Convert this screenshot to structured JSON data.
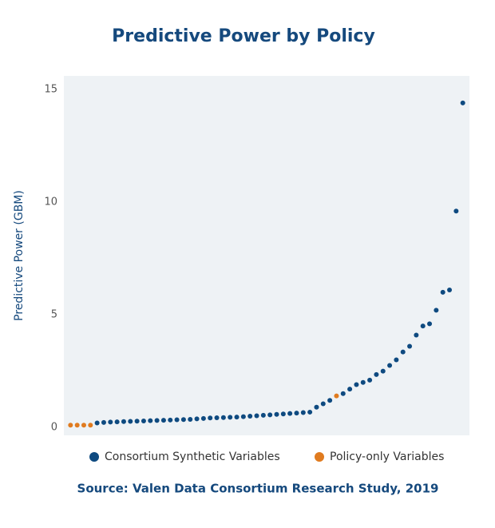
{
  "chart_data": {
    "type": "scatter",
    "title": "Predictive Power by Policy",
    "y_label": "Predictive Power (GBM)",
    "source": "Source: Valen Data Consortium Research Study, 2019",
    "xlim": [
      0,
      61
    ],
    "ylim": [
      -0.35,
      15.6
    ],
    "yticks": [
      0,
      5,
      10,
      15
    ],
    "grid": false,
    "series": [
      {
        "name": "Consortium Synthetic Variables",
        "color": "#0e4a80",
        "x": [
          5,
          6,
          7,
          8,
          9,
          10,
          11,
          12,
          13,
          14,
          15,
          16,
          17,
          18,
          19,
          20,
          21,
          22,
          23,
          24,
          25,
          26,
          27,
          28,
          29,
          30,
          31,
          32,
          33,
          34,
          35,
          36,
          37,
          38,
          39,
          40,
          42,
          43,
          44,
          45,
          46,
          47,
          48,
          49,
          50,
          51,
          52,
          53,
          54,
          55,
          56,
          57,
          58,
          59,
          60
        ],
        "values": [
          0.2,
          0.22,
          0.24,
          0.25,
          0.26,
          0.27,
          0.28,
          0.29,
          0.3,
          0.31,
          0.32,
          0.33,
          0.34,
          0.35,
          0.36,
          0.38,
          0.4,
          0.42,
          0.43,
          0.44,
          0.45,
          0.46,
          0.48,
          0.5,
          0.52,
          0.54,
          0.56,
          0.58,
          0.6,
          0.62,
          0.64,
          0.66,
          0.68,
          0.9,
          1.05,
          1.2,
          1.5,
          1.7,
          1.9,
          2.0,
          2.1,
          2.35,
          2.5,
          2.75,
          3.0,
          3.35,
          3.6,
          4.1,
          4.5,
          4.6,
          5.2,
          6.0,
          6.1,
          9.6,
          14.4
        ]
      },
      {
        "name": "Policy-only Variables",
        "color": "#e07b1f",
        "x": [
          1,
          2,
          3,
          4,
          41
        ],
        "values": [
          0.1,
          0.1,
          0.1,
          0.1,
          1.4
        ]
      }
    ]
  }
}
